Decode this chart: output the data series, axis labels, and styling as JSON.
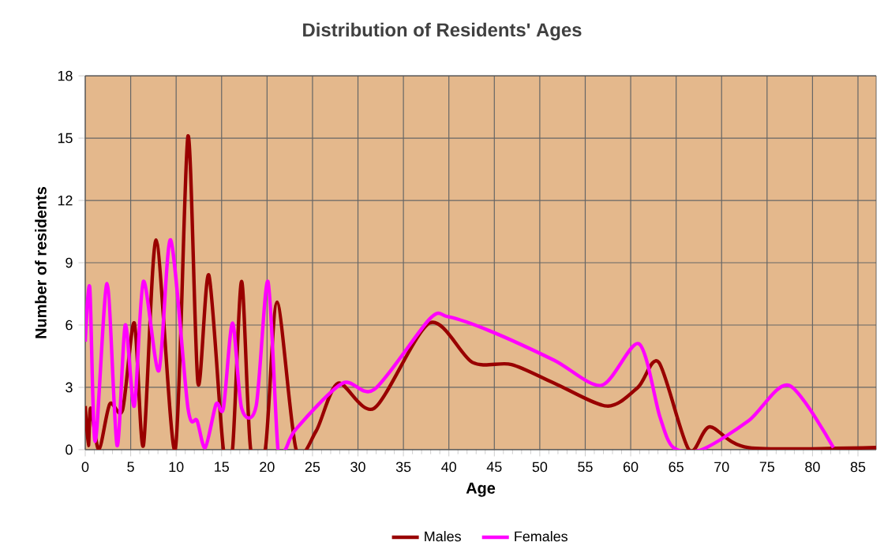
{
  "chart_data": {
    "type": "line",
    "title": "Distribution of Residents' Ages",
    "xlabel": "Age",
    "ylabel": "Number of residents",
    "xlim": [
      0,
      87
    ],
    "ylim": [
      0,
      18
    ],
    "xticks": [
      0,
      5,
      10,
      15,
      20,
      25,
      30,
      35,
      40,
      45,
      50,
      55,
      60,
      65,
      70,
      75,
      80,
      85
    ],
    "yticks": [
      0,
      3,
      6,
      9,
      12,
      15,
      18
    ],
    "grid": true,
    "legend": "bottom",
    "marker": "none",
    "line_style": "solid",
    "series": [
      {
        "name": "Males",
        "color": "#990000",
        "x": [
          0,
          0.35,
          0.6,
          1.5,
          2.7,
          4.1,
          5.4,
          6.4,
          7.8,
          9.9,
          11.3,
          12.4,
          13.6,
          15.2,
          16.2,
          17.2,
          18.2,
          19.8,
          21.1,
          23.2,
          25.4,
          27.8,
          31.8,
          37.9,
          42.6,
          46.9,
          51.6,
          57.4,
          60.8,
          63.1,
          66.4,
          68.7,
          73.0,
          87
        ],
        "values": [
          2.1,
          0.2,
          2,
          0,
          2.2,
          1.9,
          6.1,
          0.2,
          10.1,
          0,
          15.1,
          3.2,
          8.4,
          0,
          0,
          8.1,
          0,
          0,
          7.1,
          0,
          0.9,
          3.2,
          2.0,
          6.1,
          4.2,
          4.1,
          3.2,
          2.1,
          3.0,
          4.2,
          0,
          1.1,
          0.1,
          0.1
        ]
      },
      {
        "name": "Females",
        "color": "#ff00ff",
        "x": [
          0,
          0.5,
          1.1,
          2.4,
          3.5,
          4.4,
          5.4,
          6.4,
          8.1,
          9.4,
          11.3,
          12.3,
          13.2,
          14.4,
          15.2,
          16.2,
          17.2,
          18.8,
          20.1,
          21.2,
          22.0,
          23.2,
          28.3,
          31.8,
          37.9,
          39.9,
          44.6,
          51.6,
          56.8,
          60.9,
          63.2,
          64.7,
          67.8,
          73.0,
          77.4,
          82.3
        ],
        "values": [
          5.2,
          7.8,
          0.4,
          8.0,
          0.2,
          6.0,
          2.1,
          8.1,
          3.8,
          10.1,
          2.0,
          1.4,
          0.1,
          2.2,
          2.0,
          6.1,
          2.0,
          2.1,
          8.1,
          0,
          0,
          1.0,
          3.2,
          2.9,
          6.3,
          6.4,
          5.7,
          4.3,
          3.1,
          5.1,
          1.6,
          0.1,
          0,
          1.4,
          3.1,
          0.1
        ]
      }
    ]
  }
}
